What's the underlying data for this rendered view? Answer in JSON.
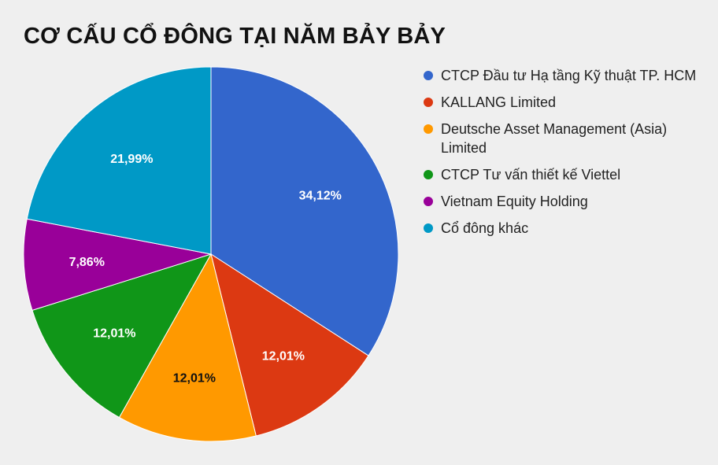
{
  "chart_data": {
    "type": "pie",
    "title": "CƠ CẤU CỔ ĐÔNG TẠI NĂM BẢY BẢY",
    "legend_position": "right",
    "slices": [
      {
        "name": "CTCP Đầu tư Hạ tầng Kỹ thuật TP. HCM",
        "value": 34.12,
        "label": "34,12%",
        "color": "#3366cc",
        "label_color": "#ffffff"
      },
      {
        "name": "KALLANG Limited",
        "value": 12.01,
        "label": "12,01%",
        "color": "#dc3912",
        "label_color": "#ffffff"
      },
      {
        "name": "Deutsche Asset Management (Asia) Limited",
        "value": 12.01,
        "label": "12,01%",
        "color": "#ff9900",
        "label_color": "#111111"
      },
      {
        "name": "CTCP Tư vấn thiết kế Viettel",
        "value": 12.01,
        "label": "12,01%",
        "color": "#109618",
        "label_color": "#ffffff"
      },
      {
        "name": "Vietnam Equity Holding",
        "value": 7.86,
        "label": "7,86%",
        "color": "#990099",
        "label_color": "#ffffff"
      },
      {
        "name": "Cổ đông khác",
        "value": 21.99,
        "label": "21,99%",
        "color": "#0099c6",
        "label_color": "#ffffff"
      }
    ]
  }
}
